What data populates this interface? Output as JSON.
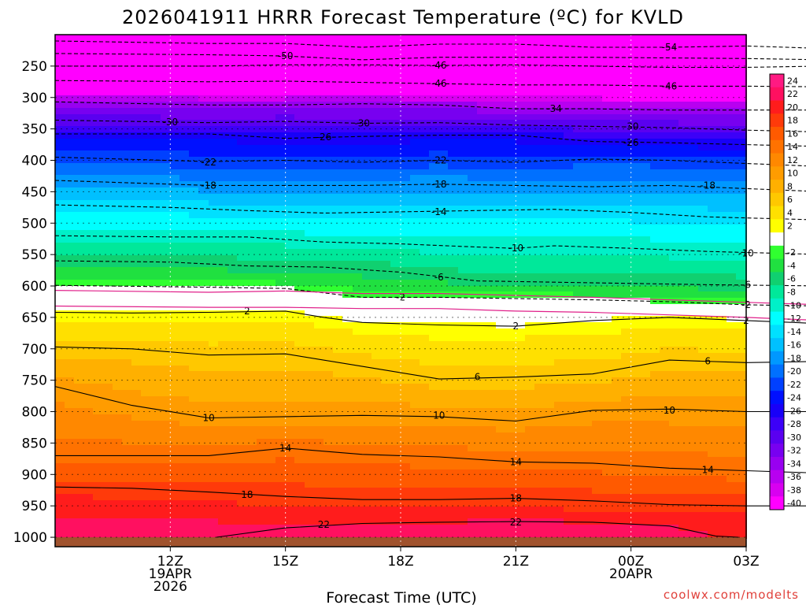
{
  "chart_data": {
    "type": "heatmap",
    "title": "2026041911 HRRR Forecast Temperature (ºC) for KVLD",
    "xlabel": "Forecast Time (UTC)",
    "credit": "coolwx.com/modelts",
    "x_range_hours": [
      -2,
      16
    ],
    "x_ticks": [
      {
        "hour": 1,
        "lines": [
          "12Z",
          "19APR",
          "2026"
        ]
      },
      {
        "hour": 4,
        "lines": [
          "15Z"
        ]
      },
      {
        "hour": 7,
        "lines": [
          "18Z"
        ]
      },
      {
        "hour": 10,
        "lines": [
          "21Z"
        ]
      },
      {
        "hour": 13,
        "lines": [
          "00Z",
          "20APR"
        ]
      },
      {
        "hour": 16,
        "lines": [
          "03Z"
        ]
      }
    ],
    "y_ticks": [
      250,
      300,
      350,
      400,
      450,
      500,
      550,
      600,
      650,
      700,
      750,
      800,
      850,
      900,
      950,
      1000
    ],
    "y_range_hpa": [
      200,
      1015
    ],
    "surface_pressure": 1000,
    "colorbar_levels": [
      "24",
      "22",
      "20",
      "18",
      "16",
      "14",
      "12",
      "10",
      "8",
      "6",
      "4",
      "2",
      "",
      "-2",
      "-4",
      "-6",
      "-8",
      "-10",
      "-12",
      "-14",
      "-16",
      "-18",
      "-20",
      "-22",
      "-24",
      "-26",
      "-28",
      "-30",
      "-32",
      "-34",
      "-36",
      "-38",
      "-40"
    ],
    "colorbar_colors": [
      "#ff1a82",
      "#ff1060",
      "#ff1c1c",
      "#ff3a0a",
      "#ff5a00",
      "#ff7200",
      "#ff8800",
      "#ff9c00",
      "#ffb000",
      "#ffc800",
      "#ffe000",
      "#ffff00",
      "#ffffff",
      "#30ff30",
      "#20e040",
      "#10d070",
      "#00e89a",
      "#00f0c8",
      "#00ffff",
      "#00e0ff",
      "#00c0ff",
      "#0098ff",
      "#0070ff",
      "#0040ff",
      "#0010ff",
      "#1800f8",
      "#3c00f8",
      "#5a00f0",
      "#7800f0",
      "#9800f0",
      "#b800f0",
      "#d800f0",
      "#ff00ff"
    ],
    "isotherms": [
      {
        "t": 22,
        "solid": true,
        "p": [
          [
            2.2,
            1000
          ],
          [
            4,
            985
          ],
          [
            6,
            978
          ],
          [
            8,
            976
          ],
          [
            10,
            975
          ],
          [
            12,
            976
          ],
          [
            14,
            982
          ],
          [
            15.2,
            998
          ],
          [
            15.8,
            1000
          ]
        ],
        "labels": [
          [
            5,
            980
          ],
          [
            10,
            976
          ]
        ]
      },
      {
        "t": 18,
        "solid": true,
        "p": [
          [
            -2,
            920
          ],
          [
            0,
            922
          ],
          [
            2,
            928
          ],
          [
            4,
            935
          ],
          [
            6,
            940
          ],
          [
            8,
            940
          ],
          [
            10,
            938
          ],
          [
            12,
            942
          ],
          [
            14,
            948
          ],
          [
            16,
            950
          ],
          [
            18,
            950
          ]
        ],
        "labels": [
          [
            3,
            932
          ],
          [
            10,
            938
          ]
        ]
      },
      {
        "t": 14,
        "solid": true,
        "p": [
          [
            -2,
            870
          ],
          [
            2,
            870
          ],
          [
            4,
            858
          ],
          [
            6,
            868
          ],
          [
            8,
            872
          ],
          [
            10,
            880
          ],
          [
            12,
            882
          ],
          [
            14,
            890
          ],
          [
            16,
            894
          ],
          [
            18,
            898
          ]
        ],
        "labels": [
          [
            4,
            858
          ],
          [
            10,
            880
          ],
          [
            15,
            893
          ]
        ]
      },
      {
        "t": 10,
        "solid": true,
        "p": [
          [
            -2,
            760
          ],
          [
            0,
            790
          ],
          [
            2,
            810
          ],
          [
            4,
            808
          ],
          [
            6,
            806
          ],
          [
            8,
            808
          ],
          [
            10,
            815
          ],
          [
            12,
            798
          ],
          [
            14,
            796
          ],
          [
            16,
            800
          ],
          [
            18,
            800
          ]
        ],
        "labels": [
          [
            2,
            810
          ],
          [
            8,
            806
          ],
          [
            14,
            798
          ]
        ]
      },
      {
        "t": 6,
        "solid": true,
        "p": [
          [
            -2,
            697
          ],
          [
            0,
            700
          ],
          [
            2,
            710
          ],
          [
            4,
            708
          ],
          [
            6,
            728
          ],
          [
            8,
            748
          ],
          [
            10,
            745
          ],
          [
            12,
            740
          ],
          [
            14,
            718
          ],
          [
            16,
            722
          ],
          [
            18,
            720
          ]
        ],
        "labels": [
          [
            9,
            745
          ],
          [
            15,
            720
          ]
        ]
      },
      {
        "t": 2,
        "solid": true,
        "p": [
          [
            -2,
            642
          ],
          [
            0,
            643
          ],
          [
            2,
            642
          ],
          [
            4,
            640
          ],
          [
            5,
            650
          ],
          [
            6,
            658
          ],
          [
            8,
            662
          ],
          [
            10,
            664
          ],
          [
            12,
            655
          ],
          [
            14,
            650
          ],
          [
            16,
            655
          ],
          [
            18,
            660
          ]
        ],
        "labels": [
          [
            3,
            640
          ],
          [
            10,
            664
          ],
          [
            16,
            655
          ]
        ]
      },
      {
        "t": -2,
        "solid": false,
        "p": [
          [
            -2,
            599
          ],
          [
            2,
            602
          ],
          [
            4,
            604
          ],
          [
            6,
            618
          ],
          [
            8,
            618
          ],
          [
            10,
            620
          ],
          [
            12,
            622
          ],
          [
            14,
            625
          ],
          [
            16,
            630
          ],
          [
            18,
            632
          ]
        ],
        "labels": [
          [
            7,
            618
          ],
          [
            16,
            630
          ]
        ]
      },
      {
        "t": -6,
        "solid": false,
        "p": [
          [
            -2,
            560
          ],
          [
            1,
            562
          ],
          [
            3,
            568
          ],
          [
            5,
            570
          ],
          [
            7,
            578
          ],
          [
            9,
            592
          ],
          [
            11,
            594
          ],
          [
            13,
            596
          ],
          [
            15,
            598
          ],
          [
            18,
            600
          ]
        ],
        "labels": [
          [
            8,
            586
          ],
          [
            16,
            598
          ]
        ]
      },
      {
        "t": -10,
        "solid": false,
        "p": [
          [
            -2,
            520
          ],
          [
            1,
            522
          ],
          [
            3,
            522
          ],
          [
            5,
            530
          ],
          [
            7,
            533
          ],
          [
            9,
            538
          ],
          [
            10,
            540
          ],
          [
            11,
            536
          ],
          [
            13,
            540
          ],
          [
            15,
            545
          ],
          [
            18,
            550
          ]
        ],
        "labels": [
          [
            10,
            540
          ],
          [
            16,
            548
          ]
        ]
      },
      {
        "t": -14,
        "solid": false,
        "p": [
          [
            -2,
            471
          ],
          [
            1,
            475
          ],
          [
            3,
            480
          ],
          [
            5,
            484
          ],
          [
            7,
            482
          ],
          [
            9,
            480
          ],
          [
            11,
            478
          ],
          [
            13,
            483
          ],
          [
            15,
            490
          ],
          [
            18,
            495
          ]
        ],
        "labels": [
          [
            8,
            482
          ]
        ]
      },
      {
        "t": -18,
        "solid": false,
        "p": [
          [
            -2,
            432
          ],
          [
            2,
            440
          ],
          [
            4,
            440
          ],
          [
            6,
            440
          ],
          [
            8,
            438
          ],
          [
            10,
            440
          ],
          [
            12,
            442
          ],
          [
            14,
            440
          ],
          [
            16,
            445
          ],
          [
            18,
            450
          ]
        ],
        "labels": [
          [
            2,
            440
          ],
          [
            8,
            438
          ],
          [
            15,
            440
          ]
        ]
      },
      {
        "t": -22,
        "solid": false,
        "p": [
          [
            -2,
            395
          ],
          [
            2,
            402
          ],
          [
            4,
            400
          ],
          [
            6,
            403
          ],
          [
            8,
            400
          ],
          [
            10,
            403
          ],
          [
            12,
            398
          ],
          [
            14,
            400
          ],
          [
            16,
            405
          ],
          [
            18,
            410
          ]
        ],
        "labels": [
          [
            2,
            403
          ],
          [
            8,
            400
          ]
        ]
      },
      {
        "t": -26,
        "solid": false,
        "p": [
          [
            -2,
            358
          ],
          [
            2,
            358
          ],
          [
            4,
            365
          ],
          [
            6,
            362
          ],
          [
            8,
            360
          ],
          [
            10,
            360
          ],
          [
            12,
            370
          ],
          [
            14,
            372
          ],
          [
            16,
            375
          ],
          [
            18,
            378
          ]
        ],
        "labels": [
          [
            5,
            363
          ],
          [
            13,
            372
          ]
        ]
      },
      {
        "t": -30,
        "solid": false,
        "p": [
          [
            -2,
            336
          ],
          [
            0,
            338
          ],
          [
            2,
            340
          ],
          [
            4,
            338
          ],
          [
            6,
            341
          ],
          [
            8,
            340
          ],
          [
            10,
            344
          ],
          [
            12,
            346
          ],
          [
            14,
            348
          ],
          [
            16,
            352
          ],
          [
            18,
            355
          ]
        ],
        "labels": [
          [
            1,
            339
          ],
          [
            6,
            341
          ],
          [
            13,
            346
          ]
        ]
      },
      {
        "t": -34,
        "solid": false,
        "p": [
          [
            -2,
            307
          ],
          [
            2,
            312
          ],
          [
            4,
            312
          ],
          [
            6,
            310
          ],
          [
            8,
            312
          ],
          [
            10,
            318
          ],
          [
            12,
            318
          ],
          [
            14,
            320
          ],
          [
            16,
            320
          ],
          [
            18,
            320
          ]
        ],
        "labels": [
          [
            11,
            318
          ]
        ]
      },
      {
        "t": -46,
        "solid": false,
        "p": [
          [
            -2,
            273
          ],
          [
            2,
            275
          ],
          [
            4,
            274
          ],
          [
            6,
            276
          ],
          [
            8,
            278
          ],
          [
            10,
            280
          ],
          [
            12,
            280
          ],
          [
            14,
            282
          ],
          [
            16,
            282
          ],
          [
            18,
            283
          ]
        ],
        "labels": [
          [
            8,
            278
          ],
          [
            14,
            282
          ]
        ]
      },
      {
        "t": -46,
        "solid": false,
        "p": [
          [
            -2,
            250
          ],
          [
            2,
            250
          ],
          [
            4,
            248
          ],
          [
            6,
            248
          ],
          [
            8,
            249
          ],
          [
            10,
            248
          ],
          [
            12,
            250
          ],
          [
            14,
            252
          ],
          [
            16,
            252
          ],
          [
            18,
            250
          ]
        ],
        "labels": [
          [
            8,
            249
          ]
        ]
      },
      {
        "t": -50,
        "solid": false,
        "p": [
          [
            -2,
            230
          ],
          [
            2,
            232
          ],
          [
            4,
            234
          ],
          [
            6,
            240
          ],
          [
            8,
            236
          ],
          [
            10,
            236
          ],
          [
            12,
            236
          ],
          [
            14,
            237
          ],
          [
            16,
            238
          ],
          [
            18,
            240
          ]
        ],
        "labels": [
          [
            4,
            234
          ]
        ]
      },
      {
        "t": -54,
        "solid": false,
        "p": [
          [
            -2,
            210
          ],
          [
            2,
            214
          ],
          [
            4,
            214
          ],
          [
            6,
            220
          ],
          [
            8,
            215
          ],
          [
            10,
            215
          ],
          [
            12,
            220
          ],
          [
            14,
            220
          ],
          [
            16,
            218
          ],
          [
            18,
            222
          ]
        ],
        "labels": [
          [
            14,
            220
          ]
        ]
      }
    ]
  }
}
